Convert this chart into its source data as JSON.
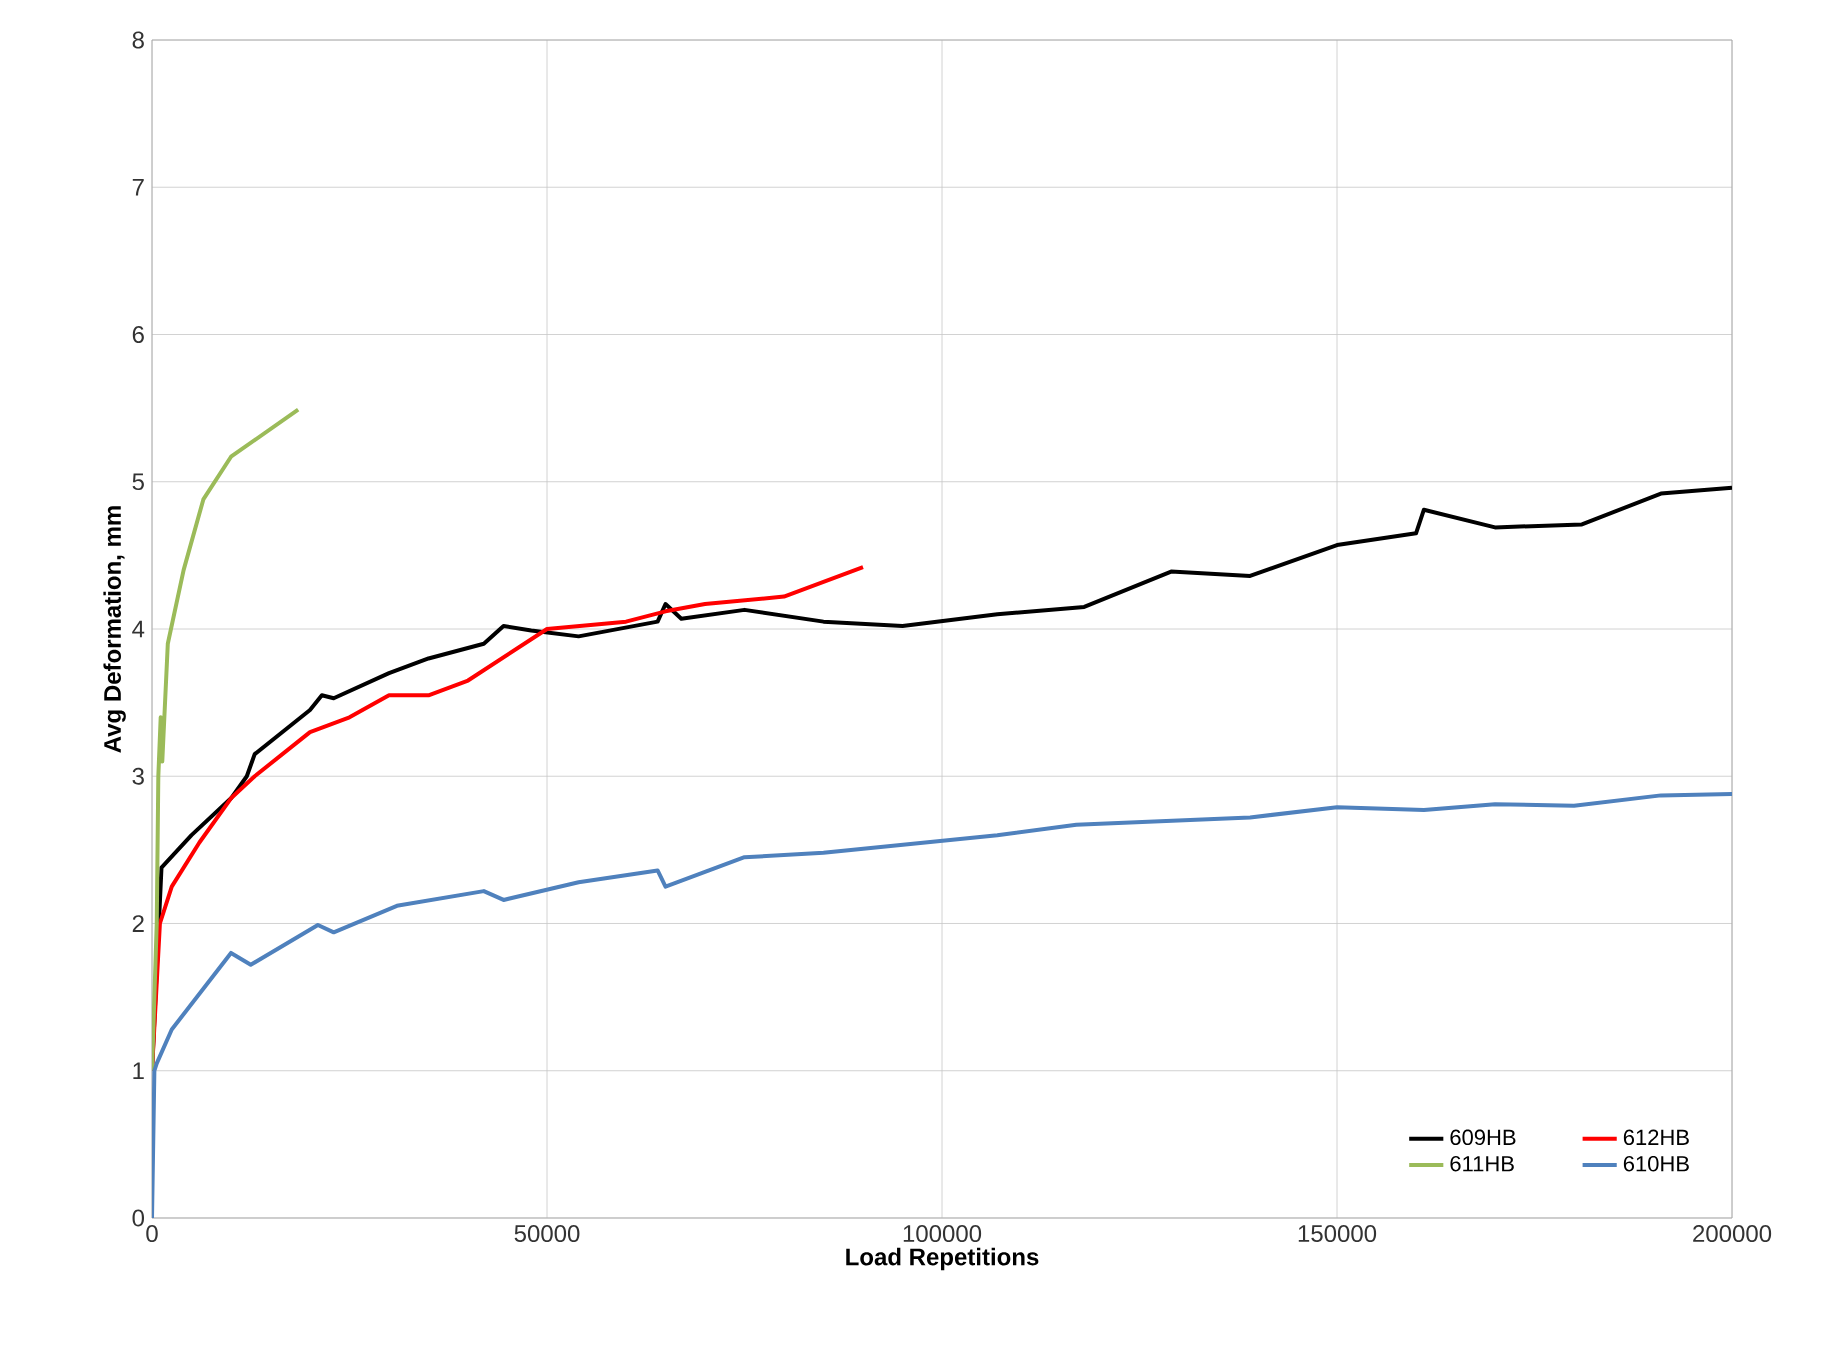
{
  "chart_data": {
    "type": "line",
    "xlabel": "Load Repetitions",
    "ylabel": "Avg Deformation, mm",
    "xlim": [
      0,
      200000
    ],
    "xticks": [
      0,
      50000,
      100000,
      150000,
      200000
    ],
    "ylim": [
      0,
      8
    ],
    "yticks": [
      0,
      1,
      2,
      3,
      4,
      5,
      6,
      7,
      8
    ],
    "grid": true,
    "legend": "bottom right",
    "marker": "none",
    "line_style": "solid",
    "series": [
      {
        "name": "609HB",
        "color": "#000000",
        "x": [
          0,
          1200,
          5000,
          10000,
          12000,
          13000,
          20000,
          21500,
          23000,
          30000,
          35000,
          42000,
          44500,
          48000,
          54000,
          64000,
          65000,
          67000,
          75000,
          85000,
          95000,
          107000,
          118000,
          129000,
          139000,
          150000,
          160000,
          161000,
          170000,
          181000,
          191000,
          200000
        ],
        "values": [
          1.0,
          2.38,
          2.6,
          2.85,
          3.0,
          3.15,
          3.45,
          3.55,
          3.53,
          3.7,
          3.8,
          3.9,
          4.02,
          3.99,
          3.95,
          4.05,
          4.17,
          4.07,
          4.13,
          4.05,
          4.02,
          4.1,
          4.15,
          4.39,
          4.36,
          4.57,
          4.65,
          4.81,
          4.69,
          4.71,
          4.92,
          4.96
        ]
      },
      {
        "name": "612HB",
        "color": "#ff0000",
        "x": [
          0,
          1000,
          2500,
          6000,
          10000,
          13000,
          20000,
          25000,
          30000,
          35000,
          40000,
          50000,
          60000,
          65000,
          70000,
          80000,
          90000
        ],
        "values": [
          1.0,
          2.0,
          2.25,
          2.55,
          2.85,
          3.0,
          3.3,
          3.4,
          3.55,
          3.55,
          3.65,
          4.0,
          4.05,
          4.12,
          4.17,
          4.22,
          4.42
        ]
      },
      {
        "name": "611HB",
        "color": "#9bbb59",
        "x": [
          0,
          600,
          800,
          1100,
          1300,
          2000,
          4000,
          6500,
          10000,
          18500
        ],
        "values": [
          1.0,
          2.0,
          3.0,
          3.4,
          3.1,
          3.9,
          4.4,
          4.88,
          5.17,
          5.49
        ]
      },
      {
        "name": "610HB",
        "color": "#4f81bd",
        "x": [
          0,
          300,
          600,
          2500,
          10000,
          12500,
          21000,
          23000,
          31000,
          42000,
          44500,
          54000,
          64000,
          65000,
          75000,
          85000,
          96000,
          107000,
          117000,
          139000,
          150000,
          161000,
          170000,
          180000,
          191000,
          200000
        ],
        "values": [
          0,
          1.0,
          1.05,
          1.28,
          1.8,
          1.72,
          1.99,
          1.94,
          2.12,
          2.22,
          2.16,
          2.28,
          2.36,
          2.25,
          2.45,
          2.48,
          2.54,
          2.6,
          2.67,
          2.72,
          2.79,
          2.77,
          2.81,
          2.8,
          2.87,
          2.88
        ]
      }
    ]
  }
}
